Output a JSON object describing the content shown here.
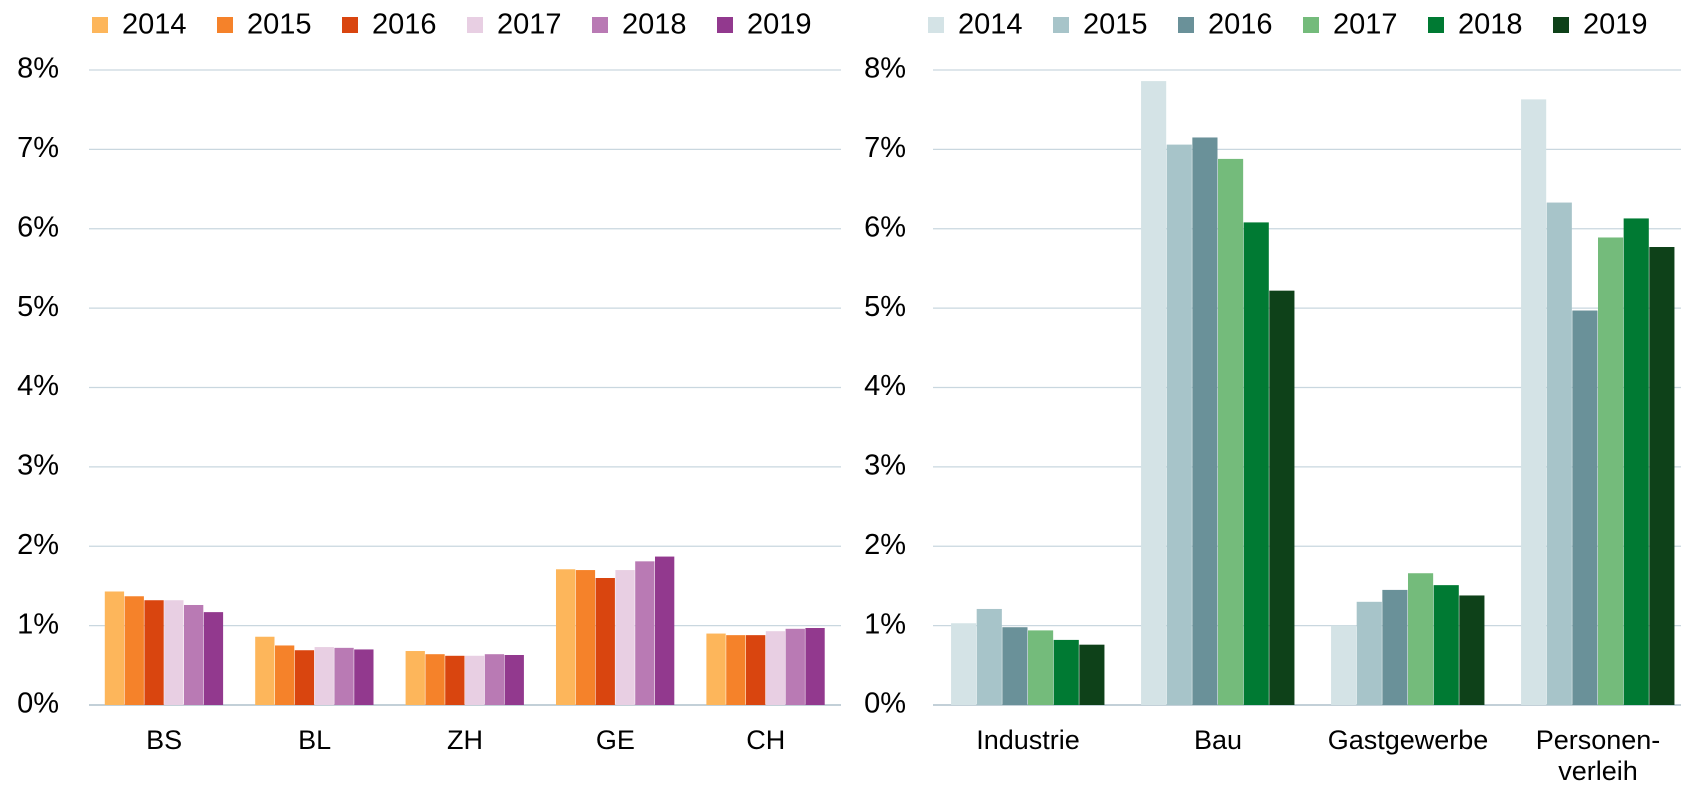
{
  "chart_data": [
    {
      "type": "bar",
      "categories": [
        "BS",
        "BL",
        "ZH",
        "GE",
        "CH"
      ],
      "series": [
        {
          "name": "2014",
          "color": "#fdb65b",
          "values": [
            1.43,
            0.86,
            0.68,
            1.71,
            0.9
          ]
        },
        {
          "name": "2015",
          "color": "#f5822a",
          "values": [
            1.37,
            0.75,
            0.64,
            1.7,
            0.88
          ]
        },
        {
          "name": "2016",
          "color": "#d9450f",
          "values": [
            1.32,
            0.69,
            0.62,
            1.6,
            0.88
          ]
        },
        {
          "name": "2017",
          "color": "#e8cfe3",
          "values": [
            1.32,
            0.73,
            0.62,
            1.7,
            0.93
          ]
        },
        {
          "name": "2018",
          "color": "#b97ab4",
          "values": [
            1.26,
            0.72,
            0.64,
            1.81,
            0.96
          ]
        },
        {
          "name": "2019",
          "color": "#92398e",
          "values": [
            1.17,
            0.7,
            0.63,
            1.87,
            0.97
          ]
        }
      ],
      "ylim": [
        0,
        8
      ],
      "yticks": [
        {
          "value": 0,
          "label": "0%"
        },
        {
          "value": 1,
          "label": "1%"
        },
        {
          "value": 2,
          "label": "2%"
        },
        {
          "value": 3,
          "label": "3%"
        },
        {
          "value": 4,
          "label": "4%"
        },
        {
          "value": 5,
          "label": "5%"
        },
        {
          "value": 6,
          "label": "6%"
        },
        {
          "value": 7,
          "label": "7%"
        },
        {
          "value": 8,
          "label": "8%"
        }
      ],
      "grid": true,
      "legend": "top"
    },
    {
      "type": "bar",
      "categories": [
        "Industrie",
        "Bau",
        "Gastgewerbe",
        "Personen-\nverleih"
      ],
      "series": [
        {
          "name": "2014",
          "color": "#d4e3e6",
          "values": [
            1.03,
            7.86,
            1.0,
            7.63
          ]
        },
        {
          "name": "2015",
          "color": "#a7c4c9",
          "values": [
            1.21,
            7.06,
            1.3,
            6.33
          ]
        },
        {
          "name": "2016",
          "color": "#6a9199",
          "values": [
            0.98,
            7.15,
            1.45,
            4.97
          ]
        },
        {
          "name": "2017",
          "color": "#74bb7b",
          "values": [
            0.94,
            6.88,
            1.66,
            5.89
          ]
        },
        {
          "name": "2018",
          "color": "#007a33",
          "values": [
            0.82,
            6.08,
            1.51,
            6.13
          ]
        },
        {
          "name": "2019",
          "color": "#0e4119",
          "values": [
            0.76,
            5.22,
            1.38,
            5.77
          ]
        }
      ],
      "ylim": [
        0,
        8
      ],
      "yticks": [
        {
          "value": 0,
          "label": "0%"
        },
        {
          "value": 1,
          "label": "1%"
        },
        {
          "value": 2,
          "label": "2%"
        },
        {
          "value": 3,
          "label": "3%"
        },
        {
          "value": 4,
          "label": "4%"
        },
        {
          "value": 5,
          "label": "5%"
        },
        {
          "value": 6,
          "label": "6%"
        },
        {
          "value": 7,
          "label": "7%"
        },
        {
          "value": 8,
          "label": "8%"
        }
      ],
      "grid": true,
      "legend": "top"
    }
  ]
}
